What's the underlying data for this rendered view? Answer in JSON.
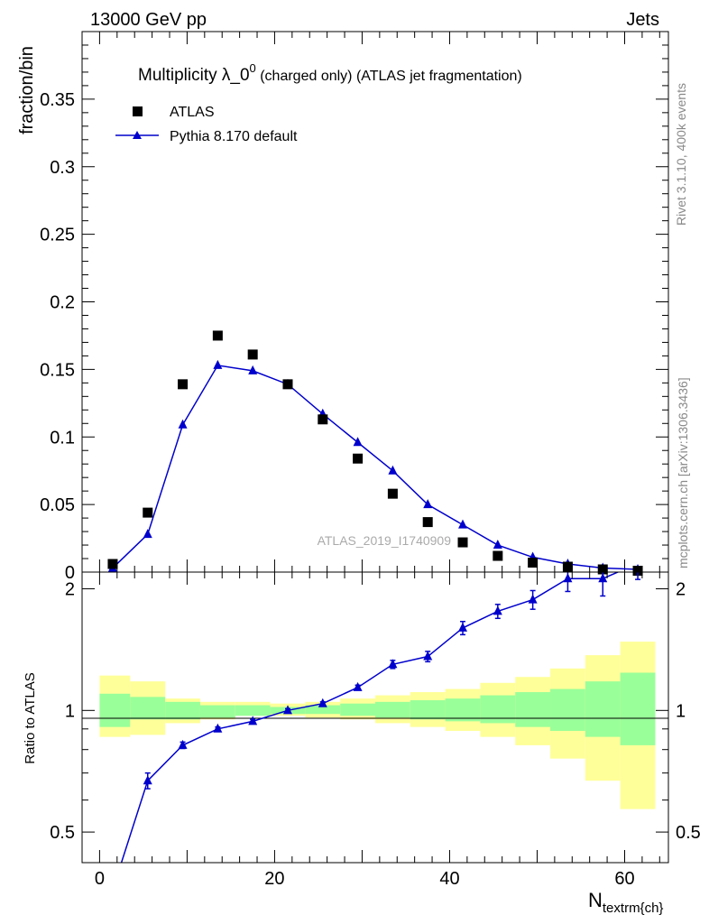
{
  "header": {
    "energy": "13000 GeV pp",
    "category": "Jets"
  },
  "side_text": {
    "rivet": "Rivet 3.1.10,  400k events",
    "mcplots": "mcplots.cern.ch [arXiv:1306.3436]"
  },
  "colors": {
    "mc": "#0000cc",
    "data": "#000000",
    "band_inner": "#99ff99",
    "band_outer": "#ffff99"
  },
  "chart_data": [
    {
      "type": "scatter",
      "panel": "main",
      "title_main": "Multiplicity λ_0",
      "title_sup": "0",
      "title_rest": " (charged only) (ATLAS jet fragmentation)",
      "ylabel": "fraction/bin",
      "xlim": [
        -2,
        65
      ],
      "ylim": [
        0,
        0.4
      ],
      "yticks": [
        0,
        0.05,
        0.1,
        0.15,
        0.2,
        0.25,
        0.3,
        0.35
      ],
      "ytick_labels": [
        "0",
        "0.05",
        "0.1",
        "0.15",
        "0.2",
        "0.25",
        "0.3",
        "0.35"
      ],
      "watermark": "ATLAS_2019_I1740909",
      "legend": [
        {
          "label": "ATLAS",
          "marker": "square"
        },
        {
          "label": "Pythia 8.170 default",
          "marker": "triangle"
        }
      ],
      "x": [
        1.5,
        5.5,
        9.5,
        13.5,
        17.5,
        21.5,
        25.5,
        29.5,
        33.5,
        37.5,
        41.5,
        45.5,
        49.5,
        53.5,
        57.5,
        61.5
      ],
      "series": [
        {
          "name": "ATLAS",
          "values": [
            0.006,
            0.044,
            0.139,
            0.175,
            0.161,
            0.139,
            0.113,
            0.084,
            0.058,
            0.037,
            0.022,
            0.012,
            0.007,
            0.004,
            0.002,
            0.001
          ]
        },
        {
          "name": "Pythia 8.170 default",
          "values": [
            0.003,
            0.028,
            0.109,
            0.153,
            0.149,
            0.139,
            0.117,
            0.096,
            0.075,
            0.05,
            0.035,
            0.02,
            0.011,
            0.006,
            0.003,
            0.002
          ]
        }
      ]
    },
    {
      "type": "line",
      "panel": "ratio",
      "ylabel": "Ratio to ATLAS",
      "xlabel_main": "N",
      "xlabel_sub": "textrm{ch}",
      "xlim": [
        -2,
        65
      ],
      "ylim": [
        0.42,
        2.2
      ],
      "yticks_labeled": [
        0.5,
        1,
        2
      ],
      "ytick_labels": [
        "0.5",
        "1",
        "2"
      ],
      "xticks": [
        0,
        20,
        40,
        60
      ],
      "xtick_labels": [
        "0",
        "20",
        "40",
        "60"
      ],
      "x": [
        1.5,
        5.5,
        9.5,
        13.5,
        17.5,
        21.5,
        25.5,
        29.5,
        33.5,
        37.5,
        41.5,
        45.5,
        49.5,
        53.5,
        57.5,
        61.5
      ],
      "series": [
        {
          "name": "Pythia 8.170 default",
          "values": [
            0.36,
            0.67,
            0.82,
            0.9,
            0.94,
            1.0,
            1.04,
            1.14,
            1.3,
            1.36,
            1.6,
            1.76,
            1.88,
            2.12,
            2.12,
            2.31
          ],
          "errors": [
            0.02,
            0.03,
            0.015,
            0.01,
            0.01,
            0.01,
            0.01,
            0.015,
            0.03,
            0.04,
            0.06,
            0.07,
            0.1,
            0.15,
            0.2,
            0.2
          ]
        }
      ],
      "bins": [
        {
          "lo": 0,
          "hi": 3.5,
          "inner": [
            0.91,
            1.1
          ],
          "outer": [
            0.86,
            1.22
          ]
        },
        {
          "lo": 3.5,
          "hi": 7.5,
          "inner": [
            0.95,
            1.08
          ],
          "outer": [
            0.87,
            1.18
          ]
        },
        {
          "lo": 7.5,
          "hi": 11.5,
          "inner": [
            0.95,
            1.05
          ],
          "outer": [
            0.93,
            1.07
          ]
        },
        {
          "lo": 11.5,
          "hi": 15.5,
          "inner": [
            0.96,
            1.03
          ],
          "outer": [
            0.95,
            1.05
          ]
        },
        {
          "lo": 15.5,
          "hi": 19.5,
          "inner": [
            0.97,
            1.03
          ],
          "outer": [
            0.97,
            1.05
          ]
        },
        {
          "lo": 19.5,
          "hi": 23.5,
          "inner": [
            0.98,
            1.02
          ],
          "outer": [
            0.97,
            1.04
          ]
        },
        {
          "lo": 23.5,
          "hi": 27.5,
          "inner": [
            0.98,
            1.03
          ],
          "outer": [
            0.96,
            1.05
          ]
        },
        {
          "lo": 27.5,
          "hi": 31.5,
          "inner": [
            0.97,
            1.04
          ],
          "outer": [
            0.95,
            1.07
          ]
        },
        {
          "lo": 31.5,
          "hi": 35.5,
          "inner": [
            0.96,
            1.05
          ],
          "outer": [
            0.93,
            1.09
          ]
        },
        {
          "lo": 35.5,
          "hi": 39.5,
          "inner": [
            0.95,
            1.06
          ],
          "outer": [
            0.91,
            1.11
          ]
        },
        {
          "lo": 39.5,
          "hi": 43.5,
          "inner": [
            0.94,
            1.07
          ],
          "outer": [
            0.89,
            1.13
          ]
        },
        {
          "lo": 43.5,
          "hi": 47.5,
          "inner": [
            0.93,
            1.09
          ],
          "outer": [
            0.86,
            1.17
          ]
        },
        {
          "lo": 47.5,
          "hi": 51.5,
          "inner": [
            0.91,
            1.11
          ],
          "outer": [
            0.82,
            1.21
          ]
        },
        {
          "lo": 51.5,
          "hi": 55.5,
          "inner": [
            0.89,
            1.13
          ],
          "outer": [
            0.76,
            1.27
          ]
        },
        {
          "lo": 55.5,
          "hi": 59.5,
          "inner": [
            0.86,
            1.18
          ],
          "outer": [
            0.67,
            1.37
          ]
        },
        {
          "lo": 59.5,
          "hi": 63.5,
          "inner": [
            0.82,
            1.24
          ],
          "outer": [
            0.57,
            1.48
          ]
        }
      ]
    }
  ]
}
